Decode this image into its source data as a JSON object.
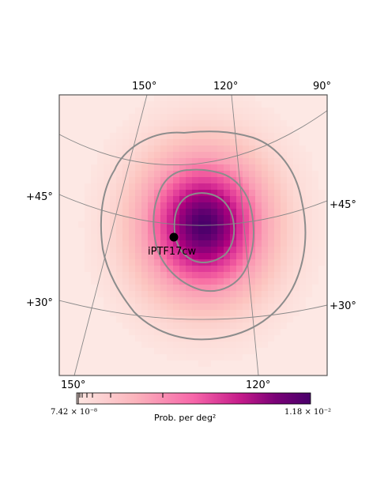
{
  "map": {
    "top_lon_ticks": [
      "150°",
      "120°",
      "90°"
    ],
    "bottom_lon_ticks": [
      "150°",
      "120°"
    ],
    "left_lat_ticks": [
      "+45°",
      "+30°"
    ],
    "right_lat_ticks": [
      "+45°",
      "+30°"
    ],
    "source": {
      "name": "iPTF17cw",
      "marker": "filled-circle"
    },
    "contours": [
      "outer-credible-region",
      "middle-credible-region",
      "inner-credible-region"
    ]
  },
  "colorbar": {
    "min_text": "7.42 × 10⁻⁸",
    "max_text": "1.18 × 10⁻²",
    "label": "Prob. per deg²",
    "colormap": "RdPu",
    "colors": {
      "low": "#fde7e2",
      "mid": "#e0228d",
      "high": "#49006a"
    }
  },
  "colors": {
    "graticule": "#888888",
    "contour": "#8c8c8c",
    "frame": "#555555",
    "background": "#fde8e4"
  }
}
